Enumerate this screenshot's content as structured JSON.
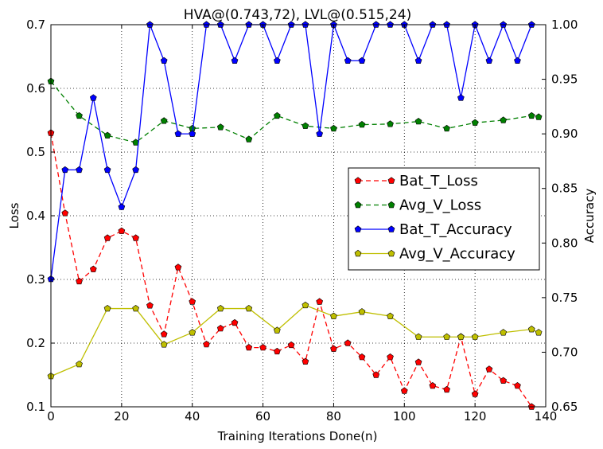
{
  "chart_data": {
    "type": "line",
    "title": "HVA@(0.743,72), LVL@(0.515,24)",
    "xlabel": "Training Iterations Done(n)",
    "ylabel": "Loss",
    "y2label": "Accuracy",
    "xlim": [
      0,
      140
    ],
    "ylim": [
      0.1,
      0.7
    ],
    "y2lim": [
      0.65,
      1.0
    ],
    "xticks": [
      0,
      20,
      40,
      60,
      80,
      100,
      120,
      140
    ],
    "yticks": [
      0.1,
      0.2,
      0.3,
      0.4,
      0.5,
      0.6,
      0.7
    ],
    "y2ticks": [
      0.65,
      0.7,
      0.75,
      0.8,
      0.85,
      0.9,
      0.95,
      1.0
    ],
    "grid": true,
    "legend_position": "center-right",
    "series": [
      {
        "name": "Bat_T_Loss",
        "axis": "left",
        "color": "#ff0000",
        "linestyle": "dashed",
        "x": [
          0,
          4,
          8,
          12,
          16,
          20,
          24,
          28,
          32,
          36,
          40,
          44,
          48,
          52,
          56,
          60,
          64,
          68,
          72,
          76,
          80,
          84,
          88,
          92,
          96,
          100,
          104,
          108,
          112,
          116,
          120,
          124,
          128,
          132,
          136
        ],
        "values": [
          0.53,
          0.404,
          0.297,
          0.316,
          0.365,
          0.376,
          0.365,
          0.259,
          0.214,
          0.319,
          0.265,
          0.198,
          0.223,
          0.232,
          0.193,
          0.193,
          0.187,
          0.197,
          0.171,
          0.265,
          0.191,
          0.2,
          0.178,
          0.15,
          0.178,
          0.125,
          0.17,
          0.133,
          0.127,
          0.21,
          0.12,
          0.159,
          0.141,
          0.133,
          0.1
        ]
      },
      {
        "name": "Avg_V_Loss",
        "axis": "left",
        "color": "#008000",
        "linestyle": "dashed",
        "x": [
          0,
          8,
          16,
          24,
          32,
          40,
          48,
          56,
          64,
          72,
          80,
          88,
          96,
          104,
          112,
          120,
          128,
          136,
          138
        ],
        "values": [
          0.611,
          0.557,
          0.526,
          0.515,
          0.549,
          0.537,
          0.539,
          0.52,
          0.557,
          0.541,
          0.537,
          0.543,
          0.544,
          0.548,
          0.537,
          0.546,
          0.55,
          0.557,
          0.555
        ]
      },
      {
        "name": "Bat_T_Accuracy",
        "axis": "right",
        "color": "#0000ff",
        "linestyle": "solid",
        "x": [
          0,
          4,
          8,
          12,
          16,
          20,
          24,
          28,
          32,
          36,
          40,
          44,
          48,
          52,
          56,
          60,
          64,
          68,
          72,
          76,
          80,
          84,
          88,
          92,
          96,
          100,
          104,
          108,
          112,
          116,
          120,
          124,
          128,
          132,
          136
        ],
        "values": [
          0.767,
          0.867,
          0.867,
          0.933,
          0.867,
          0.833,
          0.867,
          1.0,
          0.967,
          0.9,
          0.9,
          1.0,
          1.0,
          0.967,
          1.0,
          1.0,
          0.967,
          1.0,
          1.0,
          0.9,
          1.0,
          0.967,
          0.967,
          1.0,
          1.0,
          1.0,
          0.967,
          1.0,
          1.0,
          0.933,
          1.0,
          0.967,
          1.0,
          0.967,
          1.0
        ]
      },
      {
        "name": "Avg_V_Accuracy",
        "axis": "right",
        "color": "#bfbf00",
        "linestyle": "solid",
        "x": [
          0,
          8,
          16,
          24,
          32,
          40,
          48,
          56,
          64,
          72,
          80,
          88,
          96,
          104,
          112,
          116,
          120,
          128,
          136,
          138
        ],
        "values": [
          0.678,
          0.689,
          0.74,
          0.74,
          0.707,
          0.718,
          0.74,
          0.74,
          0.72,
          0.743,
          0.733,
          0.737,
          0.733,
          0.714,
          0.714,
          0.714,
          0.714,
          0.718,
          0.721,
          0.718
        ]
      }
    ]
  }
}
